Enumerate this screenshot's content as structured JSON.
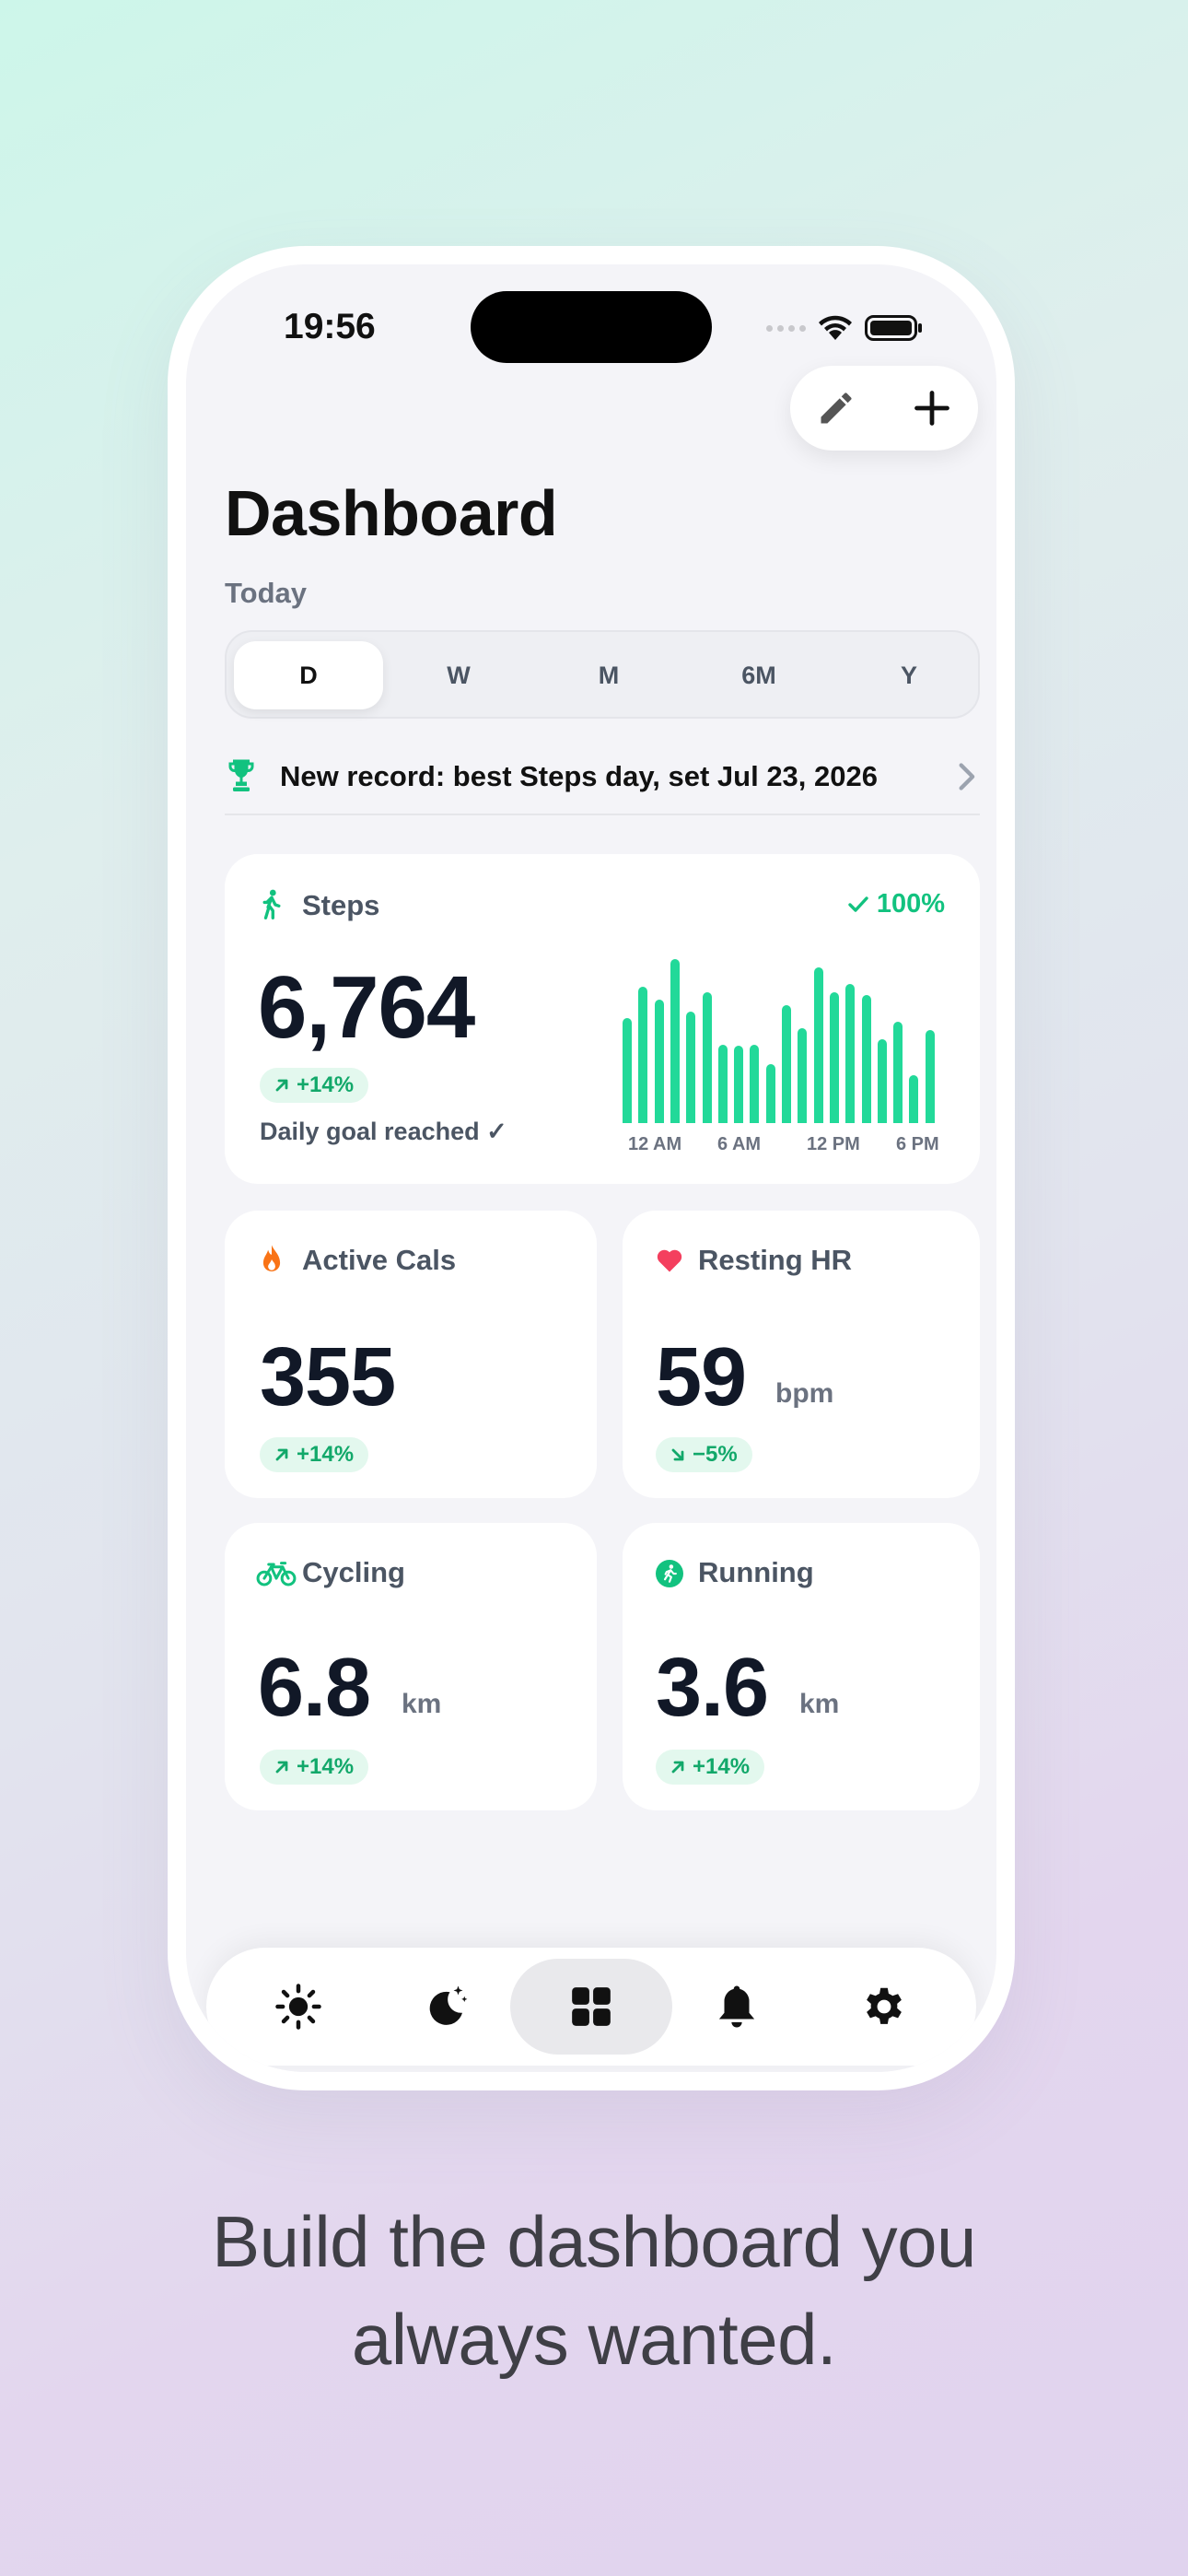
{
  "status": {
    "time": "19:56"
  },
  "header": {
    "title": "Dashboard",
    "subtitle": "Today"
  },
  "range_tabs": [
    {
      "label": "D",
      "selected": true
    },
    {
      "label": "W",
      "selected": false
    },
    {
      "label": "M",
      "selected": false
    },
    {
      "label": "6M",
      "selected": false
    },
    {
      "label": "Y",
      "selected": false
    }
  ],
  "record": {
    "icon": "trophy-icon",
    "text": "New record: best Steps day, set Jul 23, 2026"
  },
  "steps": {
    "label": "Steps",
    "icon": "walking-icon",
    "goal_percent": "100%",
    "value": "6,764",
    "change": "+14%",
    "goal_text": "Daily goal reached ✓",
    "chart_ticks": [
      "12 AM",
      "6 AM",
      "12 PM",
      "6 PM"
    ],
    "hourly": [
      0.64,
      0.83,
      0.75,
      1.0,
      0.68,
      0.8,
      0.48,
      0.47,
      0.48,
      0.36,
      0.72,
      0.58,
      0.95,
      0.8,
      0.85,
      0.78,
      0.51,
      0.62,
      0.29,
      0.57
    ]
  },
  "active_cals": {
    "label": "Active Cals",
    "icon": "flame-icon",
    "value": "355",
    "change": "+14%"
  },
  "resting_hr": {
    "label": "Resting HR",
    "icon": "heart-icon",
    "value": "59",
    "unit": "bpm",
    "change": "−5%"
  },
  "cycling": {
    "label": "Cycling",
    "icon": "bicycle-icon",
    "value": "6.8",
    "unit": "km",
    "change": "+14%"
  },
  "running": {
    "label": "Running",
    "icon": "running-icon",
    "value": "3.6",
    "unit": "km",
    "change": "+14%"
  },
  "tabbar": [
    {
      "icon": "sun-icon",
      "active": false
    },
    {
      "icon": "moon-stars-icon",
      "active": false
    },
    {
      "icon": "grid-icon",
      "active": true
    },
    {
      "icon": "bell-icon",
      "active": false
    },
    {
      "icon": "gear-icon",
      "active": false
    }
  ],
  "tagline": {
    "line1": "Build the dashboard you",
    "line2": "always wanted."
  },
  "colors": {
    "accent_green": "#22d999",
    "badge_green": "#12a86a",
    "heart_red": "#f43f5e",
    "flame_orange": "#f97316"
  }
}
